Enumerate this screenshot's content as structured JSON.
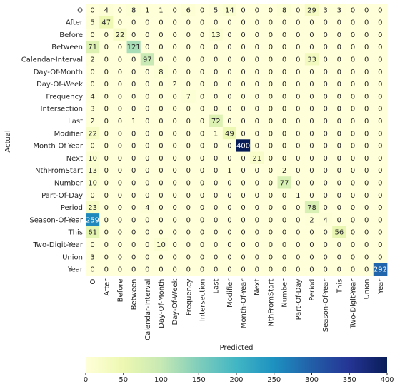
{
  "chart_data": {
    "type": "heatmap",
    "xlabel": "Predicted",
    "ylabel": "Actual",
    "labels": [
      "O",
      "After",
      "Before",
      "Between",
      "Calendar-Interval",
      "Day-Of-Month",
      "Day-Of-Week",
      "Frequency",
      "Intersection",
      "Last",
      "Modifier",
      "Month-Of-Year",
      "Next",
      "NthFromStart",
      "Number",
      "Part-Of-Day",
      "Period",
      "Season-Of-Year",
      "This",
      "Two-Digit-Year",
      "Union",
      "Year"
    ],
    "matrix": [
      [
        0,
        4,
        0,
        8,
        1,
        1,
        0,
        6,
        0,
        5,
        14,
        0,
        0,
        0,
        8,
        0,
        29,
        3,
        3,
        0,
        0,
        0
      ],
      [
        5,
        47,
        0,
        0,
        0,
        0,
        0,
        0,
        0,
        0,
        0,
        0,
        0,
        0,
        0,
        0,
        0,
        0,
        0,
        0,
        0,
        0
      ],
      [
        0,
        0,
        22,
        0,
        0,
        0,
        0,
        0,
        0,
        13,
        0,
        0,
        0,
        0,
        0,
        0,
        0,
        0,
        0,
        0,
        0,
        0
      ],
      [
        71,
        0,
        0,
        121,
        0,
        0,
        0,
        0,
        0,
        0,
        0,
        0,
        0,
        0,
        0,
        0,
        0,
        0,
        0,
        0,
        0,
        0
      ],
      [
        2,
        0,
        0,
        0,
        97,
        0,
        0,
        0,
        0,
        0,
        0,
        0,
        0,
        0,
        0,
        0,
        33,
        0,
        0,
        0,
        0,
        0
      ],
      [
        0,
        0,
        0,
        0,
        0,
        8,
        0,
        0,
        0,
        0,
        0,
        0,
        0,
        0,
        0,
        0,
        0,
        0,
        0,
        0,
        0,
        0
      ],
      [
        0,
        0,
        0,
        0,
        0,
        0,
        2,
        0,
        0,
        0,
        0,
        0,
        0,
        0,
        0,
        0,
        0,
        0,
        0,
        0,
        0,
        0
      ],
      [
        4,
        0,
        0,
        0,
        0,
        0,
        0,
        7,
        0,
        0,
        0,
        0,
        0,
        0,
        0,
        0,
        0,
        0,
        0,
        0,
        0,
        0
      ],
      [
        3,
        0,
        0,
        0,
        0,
        0,
        0,
        0,
        0,
        0,
        0,
        0,
        0,
        0,
        0,
        0,
        0,
        0,
        0,
        0,
        0,
        0
      ],
      [
        2,
        0,
        0,
        1,
        0,
        0,
        0,
        0,
        0,
        72,
        0,
        0,
        0,
        0,
        0,
        0,
        0,
        0,
        0,
        0,
        0,
        0
      ],
      [
        22,
        0,
        0,
        0,
        0,
        0,
        0,
        0,
        0,
        1,
        49,
        0,
        0,
        0,
        0,
        0,
        0,
        0,
        0,
        0,
        0,
        0
      ],
      [
        0,
        0,
        0,
        0,
        0,
        0,
        0,
        0,
        0,
        0,
        0,
        400,
        0,
        0,
        0,
        0,
        0,
        0,
        0,
        0,
        0,
        0
      ],
      [
        10,
        0,
        0,
        0,
        0,
        0,
        0,
        0,
        0,
        0,
        0,
        0,
        21,
        0,
        0,
        0,
        0,
        0,
        0,
        0,
        0,
        0
      ],
      [
        13,
        0,
        0,
        0,
        0,
        0,
        0,
        0,
        0,
        0,
        1,
        0,
        0,
        0,
        2,
        0,
        0,
        0,
        0,
        0,
        0,
        0
      ],
      [
        10,
        0,
        0,
        0,
        0,
        0,
        0,
        0,
        0,
        0,
        0,
        0,
        0,
        0,
        77,
        0,
        0,
        0,
        0,
        0,
        0,
        0
      ],
      [
        0,
        0,
        0,
        0,
        0,
        0,
        0,
        0,
        0,
        0,
        0,
        0,
        0,
        0,
        0,
        1,
        0,
        0,
        0,
        0,
        0,
        0
      ],
      [
        23,
        0,
        0,
        0,
        4,
        0,
        0,
        0,
        0,
        0,
        0,
        0,
        0,
        0,
        0,
        0,
        78,
        0,
        0,
        0,
        0,
        0
      ],
      [
        259,
        0,
        0,
        0,
        0,
        0,
        0,
        0,
        0,
        0,
        0,
        0,
        0,
        0,
        0,
        0,
        2,
        4,
        0,
        0,
        0,
        0
      ],
      [
        61,
        0,
        0,
        0,
        0,
        0,
        0,
        0,
        0,
        0,
        0,
        0,
        0,
        0,
        0,
        0,
        0,
        0,
        56,
        0,
        0,
        0
      ],
      [
        0,
        0,
        0,
        0,
        0,
        10,
        0,
        0,
        0,
        0,
        0,
        0,
        0,
        0,
        0,
        0,
        0,
        0,
        0,
        0,
        0,
        0
      ],
      [
        3,
        0,
        0,
        0,
        0,
        0,
        0,
        0,
        0,
        0,
        0,
        0,
        0,
        0,
        0,
        0,
        0,
        0,
        0,
        0,
        0,
        0
      ],
      [
        0,
        0,
        0,
        0,
        0,
        0,
        0,
        0,
        0,
        0,
        0,
        0,
        0,
        0,
        0,
        0,
        0,
        0,
        0,
        0,
        0,
        292
      ]
    ],
    "colorbar": {
      "min": 0,
      "max": 400,
      "ticks": [
        0,
        50,
        100,
        150,
        200,
        250,
        300,
        350,
        400
      ],
      "colormap": "YlGnBu",
      "stops": [
        "#ffffd9",
        "#edf8b1",
        "#c7e9b4",
        "#7fcdbb",
        "#41b6c4",
        "#1d91c0",
        "#225ea8",
        "#253494",
        "#081d58"
      ]
    }
  }
}
